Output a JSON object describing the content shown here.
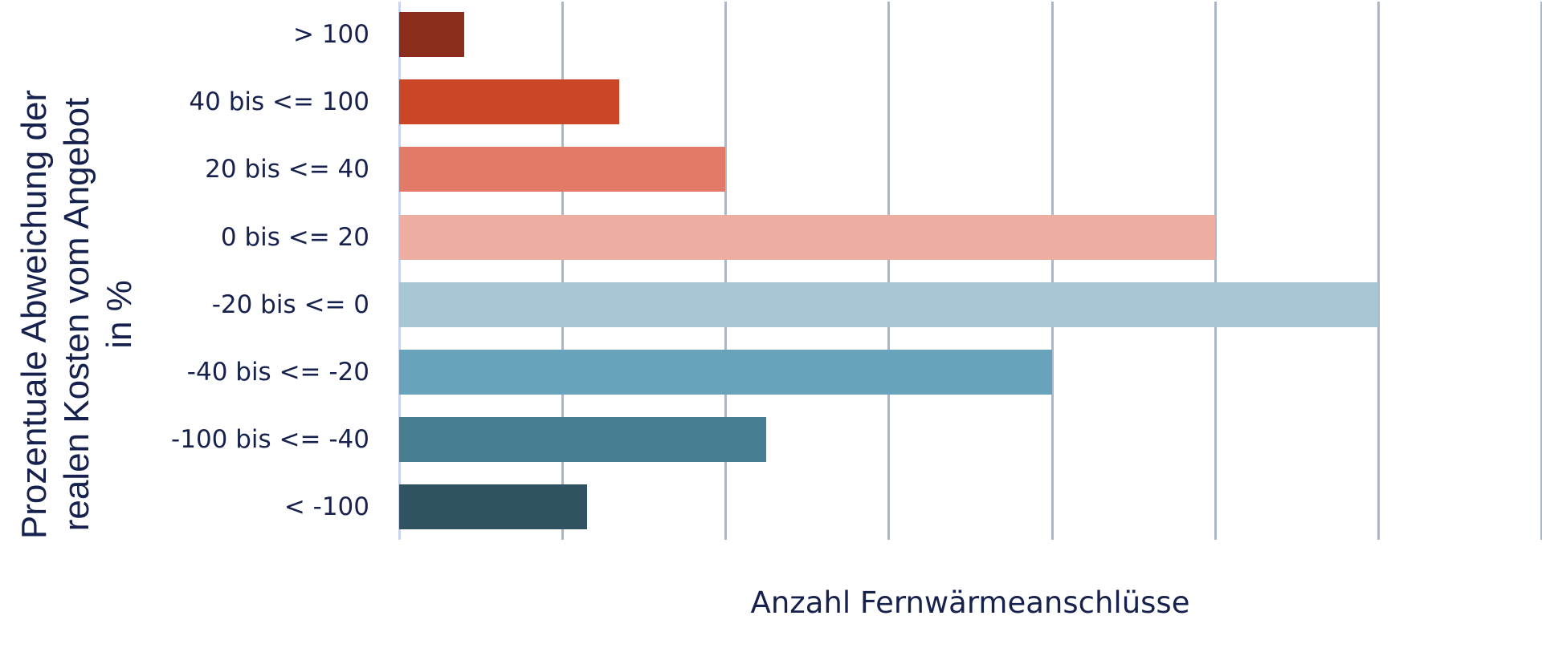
{
  "chart_data": {
    "type": "bar",
    "orientation": "horizontal",
    "title": "",
    "xlabel": "Anzahl Fernwärmeanschlüsse",
    "ylabel_lines": [
      "Prozentuale Abweichung der",
      "realen Kosten vom Angebot",
      "in %"
    ],
    "ylabel": "Prozentuale Abweichung der realen Kosten vom Angebot in %",
    "categories": [
      "> 100",
      "40 bis <= 100",
      "20 bis <= 40",
      "0 bis <= 20",
      "-20 bis <= 0",
      "-40 bis <= -20",
      "-100 bis <= -40",
      "< -100"
    ],
    "values": [
      0.4,
      1.35,
      2.0,
      5.0,
      6.0,
      4.0,
      2.25,
      1.15
    ],
    "value_units": "gridline intervals (no numeric tick labels shown)",
    "colors": [
      "#8B2E1C",
      "#CB4626",
      "#E17A66",
      "#EDAEA1",
      "#A7C6D4",
      "#68A3BB",
      "#477E91",
      "#305362"
    ],
    "xlim": [
      0,
      7
    ],
    "gridlines_x": [
      0,
      1,
      2,
      3,
      4,
      5,
      6,
      7
    ],
    "x_tick_labels_visible": false,
    "grid": true,
    "legend": "none"
  },
  "style": {
    "text_color": "#16224d",
    "gridline_color": "#aab6c9",
    "axis_color": "#c9d5ee"
  }
}
